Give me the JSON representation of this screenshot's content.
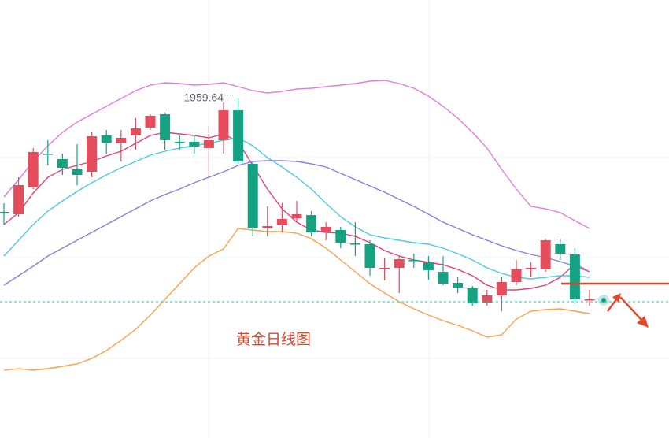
{
  "chart_data": {
    "type": "candlestick",
    "title": "黄金日线图",
    "ylim": [
      1744,
      2022
    ],
    "up_color": "#e54d5c",
    "down_color": "#14a283",
    "open": [
      1887.5,
      1886,
      1903,
      1924.5,
      1921,
      1914.5,
      1913,
      1936,
      1931,
      1936,
      1941,
      1949.5,
      1932,
      1932,
      1928,
      1933,
      1952,
      1918,
      1877,
      1879,
      1883.5,
      1885.5,
      1875,
      1876,
      1867.5,
      1867,
      1851.5,
      1852,
      1857,
      1855.5,
      1849.5,
      1842.5,
      1839,
      1830,
      1834.5,
      1843,
      1851.5,
      1851,
      1867,
      1860.5,
      1831.5
    ],
    "high": [
      1893,
      1909.5,
      1928,
      1933,
      1924.5,
      1930.5,
      1938,
      1939.5,
      1939.5,
      1947,
      1949.5,
      1950.5,
      1936,
      1936,
      1942,
      1957,
      1959.64,
      1919.5,
      1891,
      1893,
      1894.5,
      1888,
      1881,
      1878,
      1881,
      1869.5,
      1858,
      1859.5,
      1861,
      1859.5,
      1859.5,
      1846,
      1840.5,
      1838,
      1846,
      1857,
      1855.5,
      1870.5,
      1870.5,
      1864.5,
      1838
    ],
    "low": [
      1879.5,
      1884.5,
      1902,
      1917,
      1911,
      1904.5,
      1909.5,
      1924.5,
      1919.5,
      1927,
      1939.5,
      1927,
      1927,
      1924.5,
      1909.5,
      1924.5,
      1918,
      1872,
      1872,
      1874.5,
      1881,
      1872,
      1869.5,
      1864.5,
      1859.5,
      1847,
      1844,
      1836,
      1852,
      1844.5,
      1841,
      1836,
      1828,
      1828,
      1824.5,
      1841,
      1846,
      1849.5,
      1857,
      1829.5,
      1828
    ],
    "close": [
      1887,
      1904.5,
      1925.5,
      1924,
      1915.5,
      1911,
      1935.5,
      1931,
      1934.5,
      1940.5,
      1948.5,
      1933,
      1931.5,
      1929,
      1933,
      1952,
      1919.5,
      1877,
      1878.5,
      1883,
      1886,
      1874.5,
      1878,
      1868,
      1867,
      1852,
      1852,
      1857.5,
      1856.5,
      1850.5,
      1842,
      1839.5,
      1829.5,
      1834.5,
      1843,
      1851,
      1852,
      1869.5,
      1861,
      1832,
      1832
    ],
    "lines": [
      {
        "color": "#e2407c",
        "values": [
          1879.5,
          1887,
          1899.5,
          1909.5,
          1914.5,
          1917,
          1919.5,
          1923,
          1926,
          1931,
          1936,
          1938,
          1937,
          1936,
          1934.5,
          1937,
          1932,
          1917,
          1902,
          1889.5,
          1881,
          1876,
          1874.5,
          1874,
          1872,
          1868,
          1863,
          1859.5,
          1857,
          1855.5,
          1854,
          1851,
          1847,
          1841,
          1838,
          1838,
          1839,
          1841,
          1846,
          1854.5,
          1849.5
        ]
      },
      {
        "color": "#4ccbe0",
        "values": [
          1859.5,
          1869.5,
          1879.5,
          1888,
          1894.5,
          1900.5,
          1906,
          1911,
          1915.5,
          1919.5,
          1923.5,
          1926,
          1928,
          1929.5,
          1931,
          1933,
          1934.5,
          1929.5,
          1922,
          1916,
          1909.5,
          1902,
          1893,
          1884.5,
          1878,
          1873,
          1871,
          1869.5,
          1868,
          1867,
          1864.5,
          1861,
          1857,
          1852,
          1848.5,
          1846,
          1845,
          1846,
          1847,
          1847,
          1846
        ]
      },
      {
        "color": "#8b7ee2",
        "values": [
          1841,
          1847,
          1853,
          1859.5,
          1864.5,
          1869.5,
          1874.5,
          1879.5,
          1884.5,
          1889.5,
          1894.5,
          1898.5,
          1902,
          1906,
          1909.5,
          1913,
          1917,
          1919.5,
          1920,
          1920,
          1919.5,
          1918,
          1916,
          1912,
          1908,
          1904,
          1900,
          1895.5,
          1891,
          1886,
          1881,
          1877,
          1873,
          1869.5,
          1866,
          1863,
          1860.5,
          1858.5,
          1856,
          1853,
          1849.5
        ]
      },
      {
        "color": "#e07edc",
        "values": [
          1897,
          1908,
          1919.5,
          1929.5,
          1938,
          1944.5,
          1949.5,
          1954.5,
          1959.5,
          1964.5,
          1968,
          1969.5,
          1969,
          1968,
          1968.5,
          1969.5,
          1967,
          1964.5,
          1963,
          1964,
          1965.5,
          1966,
          1967,
          1968,
          1969,
          1970.5,
          1971,
          1969,
          1966,
          1961,
          1954.5,
          1947,
          1938,
          1928,
          1914.5,
          1902,
          1891,
          1889.5,
          1887,
          1882,
          1877
        ]
      },
      {
        "color": "#f6a24f",
        "values": [
          1787,
          1788,
          1787,
          1788,
          1789.5,
          1791,
          1794.5,
          1799.5,
          1806,
          1813,
          1822,
          1832,
          1842,
          1852,
          1859.5,
          1864,
          1877,
          1876,
          1875,
          1875,
          1874,
          1870.5,
          1864.5,
          1857,
          1849.5,
          1842,
          1836,
          1830.5,
          1826,
          1822,
          1818.5,
          1815.5,
          1812,
          1808,
          1809.5,
          1819.5,
          1824.5,
          1825.5,
          1826,
          1824.5,
          1823
        ]
      }
    ],
    "last_price": 1830.5,
    "level": 1842,
    "max_label": {
      "value": 1959.64,
      "label": "1959.64"
    }
  }
}
